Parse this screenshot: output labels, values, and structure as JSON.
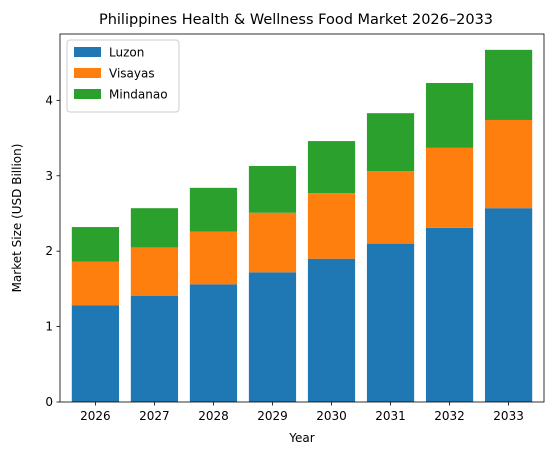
{
  "chart_data": {
    "type": "bar",
    "stacked": true,
    "title": "Philippines Health & Wellness Food Market 2026–2033",
    "xlabel": "Year",
    "ylabel": "Market Size (USD Billion)",
    "categories": [
      "2026",
      "2027",
      "2028",
      "2029",
      "2030",
      "2031",
      "2032",
      "2033"
    ],
    "ylim": [
      0,
      4.88
    ],
    "yticks": [
      0,
      1,
      2,
      3,
      4
    ],
    "grid": false,
    "legend_position": "upper-left",
    "series": [
      {
        "name": "Luzon",
        "color": "#1f77b4",
        "values": [
          1.28,
          1.41,
          1.56,
          1.72,
          1.9,
          2.1,
          2.31,
          2.57
        ]
      },
      {
        "name": "Visayas",
        "color": "#ff7f0e",
        "values": [
          0.58,
          0.64,
          0.7,
          0.79,
          0.87,
          0.96,
          1.06,
          1.17
        ]
      },
      {
        "name": "Mindanao",
        "color": "#2ca02c",
        "values": [
          0.46,
          0.52,
          0.58,
          0.62,
          0.69,
          0.77,
          0.86,
          0.93
        ]
      }
    ]
  }
}
